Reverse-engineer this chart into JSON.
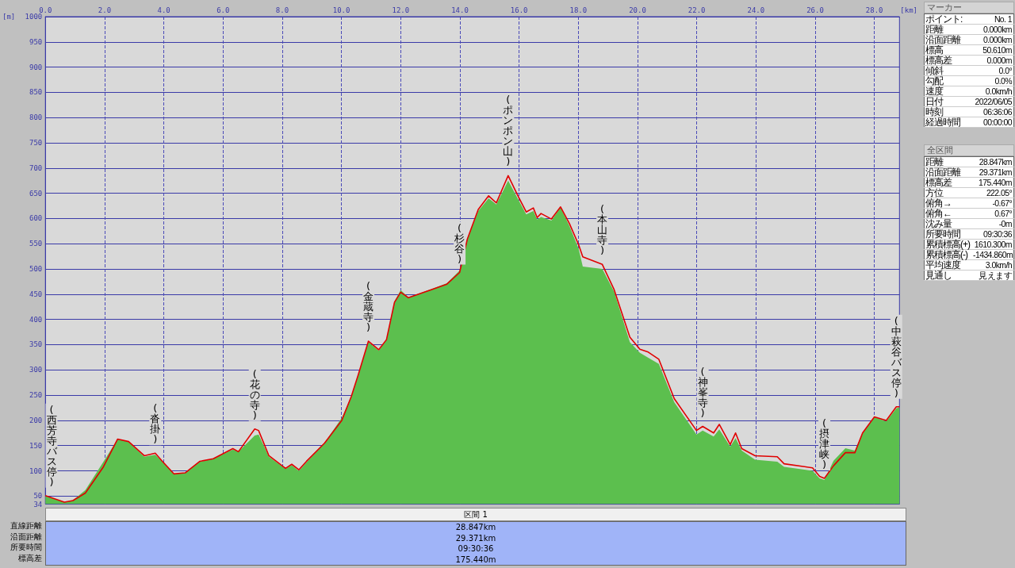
{
  "chart_data": [
    {
      "type": "area",
      "xlabel": "[km]",
      "ylabel": "[m]",
      "xlim": [
        0,
        28.847
      ],
      "ylim": [
        34,
        1000
      ],
      "xticks": [
        {
          "value": 0,
          "label": "0.0"
        },
        {
          "value": 2,
          "label": "2.0"
        },
        {
          "value": 4,
          "label": "4.0"
        },
        {
          "value": 6,
          "label": "6.0"
        },
        {
          "value": 8,
          "label": "8.0"
        },
        {
          "value": 10,
          "label": "10.0"
        },
        {
          "value": 12,
          "label": "12.0"
        },
        {
          "value": 14,
          "label": "14.0"
        },
        {
          "value": 16,
          "label": "16.0"
        },
        {
          "value": 18,
          "label": "18.0"
        },
        {
          "value": 20,
          "label": "20.0"
        },
        {
          "value": 22,
          "label": "22.0"
        },
        {
          "value": 24,
          "label": "24.0"
        },
        {
          "value": 26,
          "label": "26.0"
        },
        {
          "value": 28,
          "label": "28.0"
        }
      ],
      "yticks": [
        34,
        50,
        100,
        150,
        200,
        250,
        300,
        350,
        400,
        450,
        500,
        550,
        600,
        650,
        700,
        750,
        800,
        850,
        900,
        950,
        1000
      ],
      "grid": true,
      "marker": "none",
      "x": [
        0,
        0.64,
        0.93,
        1.35,
        1.96,
        2.44,
        2.81,
        3.34,
        3.71,
        3.95,
        4.34,
        4.72,
        5.22,
        5.67,
        6.33,
        6.52,
        7.07,
        7.2,
        7.55,
        8.11,
        8.32,
        8.56,
        8.82,
        9.43,
        10.01,
        10.33,
        10.57,
        10.91,
        11.26,
        11.52,
        11.79,
        12.0,
        12.26,
        13.03,
        13.56,
        13.99,
        14.25,
        14.62,
        14.97,
        15.23,
        15.63,
        15.95,
        16.24,
        16.48,
        16.61,
        16.74,
        17.09,
        17.4,
        17.7,
        18.01,
        18.15,
        18.81,
        19.21,
        19.74,
        20.08,
        20.34,
        20.72,
        21.24,
        21.99,
        22.2,
        22.57,
        22.76,
        23.13,
        23.31,
        23.52,
        23.97,
        24.72,
        24.95,
        25.91,
        26.15,
        26.31,
        26.62,
        27.02,
        27.34,
        27.6,
        28.0,
        28.4,
        28.74,
        28.847
      ],
      "series": [
        {
          "type": "area",
          "color": "#5cbf4e",
          "values": [
            50,
            38,
            42,
            62,
            118,
            163,
            157,
            128,
            132,
            118,
            94,
            96,
            118,
            124,
            142,
            138,
            170,
            172,
            128,
            104,
            111,
            100,
            117,
            156,
            205,
            247,
            290,
            355,
            338,
            360,
            436,
            458,
            444,
            460,
            472,
            497,
            560,
            615,
            640,
            628,
            675,
            640,
            608,
            615,
            598,
            603,
            596,
            622,
            585,
            540,
            505,
            500,
            455,
            355,
            334,
            325,
            312,
            236,
            172,
            180,
            168,
            182,
            148,
            165,
            140,
            122,
            118,
            108,
            100,
            85,
            82,
            120,
            145,
            140,
            175,
            207,
            198,
            224,
            226
          ]
        },
        {
          "type": "line",
          "color": "#e00000",
          "values": [
            51,
            38,
            41,
            56,
            108,
            163,
            158,
            130,
            135,
            119,
            94,
            96,
            119,
            124,
            144,
            138,
            183,
            180,
            130,
            105,
            113,
            102,
            119,
            155,
            200,
            247,
            291,
            357,
            340,
            360,
            434,
            454,
            443,
            459,
            470,
            493,
            559,
            618,
            645,
            631,
            685,
            646,
            613,
            621,
            602,
            610,
            599,
            623,
            590,
            548,
            524,
            509,
            459,
            365,
            341,
            336,
            321,
            243,
            180,
            188,
            175,
            192,
            152,
            175,
            144,
            130,
            128,
            114,
            106,
            89,
            85,
            110,
            136,
            136,
            175,
            207,
            200,
            227,
            227
          ]
        }
      ],
      "annotations": [
        {
          "text": "(西芳寺バス停)",
          "x": 0,
          "y": 51
        },
        {
          "text": "(沓掛)",
          "x": 3.71,
          "y": 135
        },
        {
          "text": "(花の寺)",
          "x": 7.07,
          "y": 183
        },
        {
          "text": "(金蔵寺)",
          "x": 10.91,
          "y": 357
        },
        {
          "text": "(杉谷)",
          "x": 13.99,
          "y": 493
        },
        {
          "text": "(ポンポン山)",
          "x": 15.63,
          "y": 685
        },
        {
          "text": "(本山寺)",
          "x": 18.81,
          "y": 509
        },
        {
          "text": "(神峯寺)",
          "x": 22.2,
          "y": 188
        },
        {
          "text": "(摂津峡)",
          "x": 26.31,
          "y": 85
        },
        {
          "text": "(中萩谷バス停)",
          "x": 28.74,
          "y": 227
        }
      ]
    },
    {
      "type": "other",
      "title": "マーカー",
      "annotations": [
        "ポイント:",
        "No. 1",
        "距離",
        "0.000km",
        "沿面距離",
        "0.000km",
        "標高",
        "50.610m",
        "標高差",
        "0.000m",
        "傾斜",
        "0.0°",
        "勾配",
        "0.0%",
        "速度",
        "0.0km/h",
        "日付",
        "2022/06/05",
        "時刻",
        "06:36:06",
        "経過時間",
        "00:00:00"
      ]
    },
    {
      "type": "other",
      "title": "全区間",
      "annotations": [
        "距離",
        "28.847km",
        "沿面距離",
        "29.371km",
        "標高差",
        "175.440m",
        "方位",
        "222.05°",
        "俯角→",
        "-0.67°",
        "俯角←",
        "0.67°",
        "沈み量",
        "-0m",
        "所要時間",
        "09:30:36",
        "累積標高(+)",
        "1610.300m",
        "累積標高(-)",
        "-1434.860m",
        "平均速度",
        "3.0km/h",
        "見通し",
        "見えます"
      ]
    },
    {
      "type": "other",
      "title": "区間 1",
      "annotations": [
        "直線距離",
        "28.847km",
        "沿面距離",
        "29.371km",
        "所要時間",
        "09:30:36",
        "標高差",
        "175.440m"
      ]
    }
  ]
}
